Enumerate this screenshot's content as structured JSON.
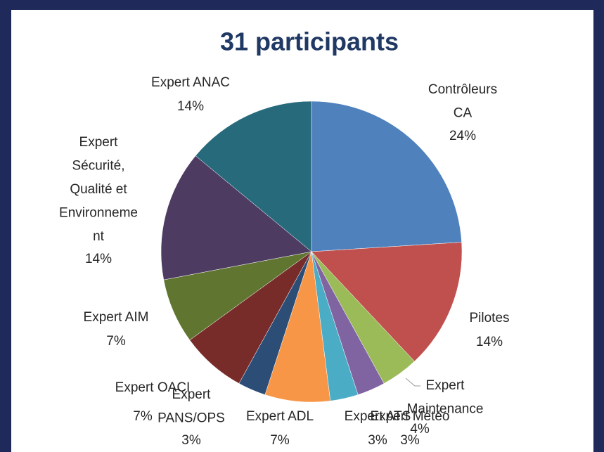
{
  "chart_data": {
    "type": "pie",
    "title": "31 participants",
    "categories": [
      [
        "Contrôleurs",
        "CA"
      ],
      [
        "Pilotes"
      ],
      [
        "Expert",
        "Maintenance"
      ],
      [
        "Expert Météo"
      ],
      [
        "Expert ATS"
      ],
      [
        "Expert  ADL"
      ],
      [
        "Expert",
        "PANS/OPS"
      ],
      [
        "Expert OACI"
      ],
      [
        "Expert  AIM"
      ],
      [
        "Expert",
        "Sécurité,",
        "Qualité et",
        "Environneme",
        "nt"
      ],
      [
        "Expert ANAC"
      ]
    ],
    "values": [
      24,
      14,
      4,
      3,
      3,
      7,
      3,
      7,
      7,
      14,
      14
    ],
    "value_labels": [
      "24%",
      "14%",
      "4%",
      "3%",
      "3%",
      "7%",
      "3%",
      "7%",
      "7%",
      "14%",
      "14%"
    ],
    "colors": [
      "#4f81bd",
      "#c0504d",
      "#9bbb59",
      "#8064a2",
      "#4bacc6",
      "#f79646",
      "#2c4d75",
      "#772c2a",
      "#5f7530",
      "#4d3b62",
      "#276a7c"
    ]
  }
}
